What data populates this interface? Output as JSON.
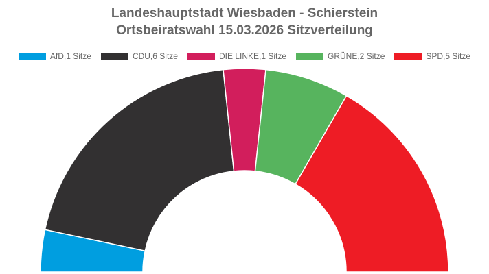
{
  "chart_data": {
    "type": "pie",
    "subtype": "half-donut",
    "title": [
      "Landeshauptstadt Wiesbaden - Schierstein",
      "Ortsbeiratswahl 15.03.2026 Sitzverteilung"
    ],
    "legend_position": "top",
    "series": [
      {
        "name": "AfD",
        "label": "AfD,1 Sitze",
        "value": 1,
        "color": "#009ee0"
      },
      {
        "name": "CDU",
        "label": "CDU,6 Sitze",
        "value": 6,
        "color": "#323031"
      },
      {
        "name": "DIE LINKE",
        "label": "DIE LINKE,1 Sitze",
        "value": 1,
        "color": "#d21e5c"
      },
      {
        "name": "GRÜNE",
        "label": "GRÜNE,2 Sitze",
        "value": 2,
        "color": "#57b45e"
      },
      {
        "name": "SPD",
        "label": "SPD,5 Sitze",
        "value": 5,
        "color": "#ee1c25"
      }
    ]
  }
}
